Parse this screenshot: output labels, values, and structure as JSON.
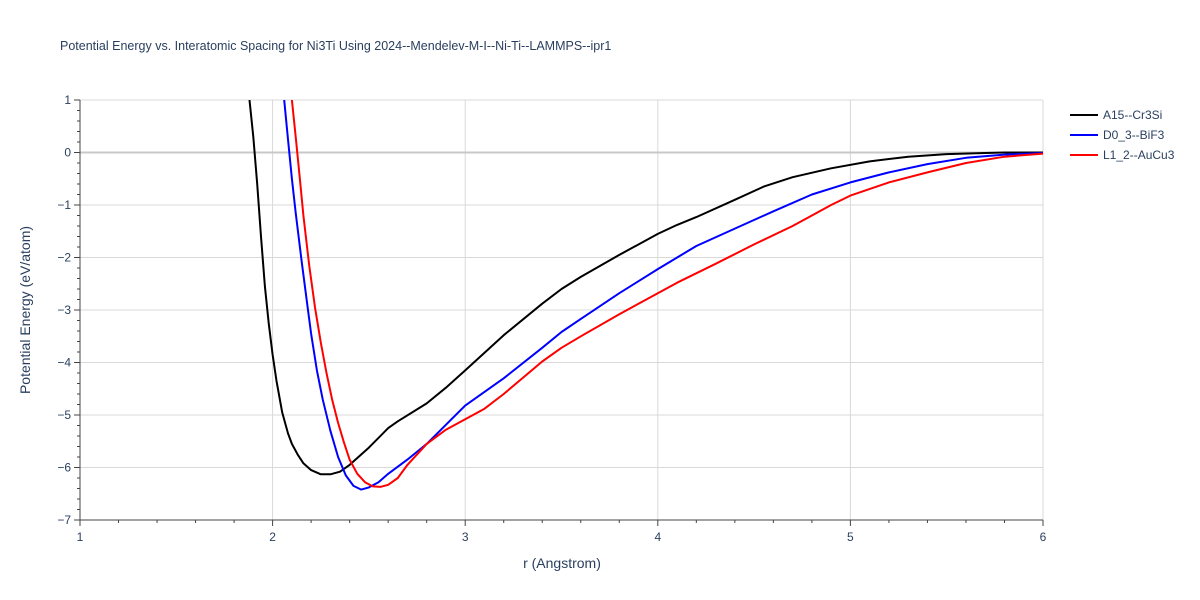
{
  "chart_data": {
    "type": "line",
    "title": "Potential Energy vs. Interatomic Spacing for Ni3Ti Using 2024--Mendelev-M-I--Ni-Ti--LAMMPS--ipr1",
    "xlabel": "r (Angstrom)",
    "ylabel": "Potential Energy (eV/atom)",
    "xlim": [
      1,
      6
    ],
    "ylim": [
      -7,
      1
    ],
    "xticks": [
      1,
      2,
      3,
      4,
      5,
      6
    ],
    "yticks": [
      1,
      0,
      -1,
      -2,
      -3,
      -4,
      -5,
      -6,
      -7
    ],
    "xtick_labels": [
      "1",
      "2",
      "3",
      "4",
      "5",
      "6"
    ],
    "ytick_labels": [
      "1",
      "0",
      "−1",
      "−2",
      "−3",
      "−4",
      "−5",
      "−6",
      "−7"
    ],
    "grid": true,
    "legend_position": "top-right",
    "series": [
      {
        "name": "A15--Cr3Si",
        "color": "#000000",
        "x": [
          1.88,
          1.9,
          1.92,
          1.94,
          1.96,
          1.98,
          2.0,
          2.02,
          2.05,
          2.08,
          2.1,
          2.13,
          2.16,
          2.2,
          2.25,
          2.3,
          2.35,
          2.4,
          2.5,
          2.6,
          2.65,
          2.8,
          2.9,
          3.0,
          3.2,
          3.4,
          3.5,
          3.6,
          3.8,
          4.0,
          4.1,
          4.2,
          4.4,
          4.55,
          4.7,
          4.9,
          5.1,
          5.3,
          5.5,
          5.7,
          5.8,
          6.0
        ],
        "y": [
          1.0,
          0.3,
          -0.6,
          -1.6,
          -2.55,
          -3.25,
          -3.85,
          -4.35,
          -4.95,
          -5.35,
          -5.55,
          -5.75,
          -5.92,
          -6.05,
          -6.13,
          -6.13,
          -6.08,
          -5.95,
          -5.62,
          -5.25,
          -5.12,
          -4.78,
          -4.48,
          -4.15,
          -3.48,
          -2.88,
          -2.6,
          -2.37,
          -1.95,
          -1.55,
          -1.38,
          -1.23,
          -0.9,
          -0.65,
          -0.47,
          -0.3,
          -0.17,
          -0.08,
          -0.03,
          -0.01,
          0.0,
          0.0
        ]
      },
      {
        "name": "D0_3--BiF3",
        "color": "#0000ff",
        "x": [
          2.06,
          2.08,
          2.1,
          2.12,
          2.15,
          2.18,
          2.2,
          2.23,
          2.26,
          2.3,
          2.34,
          2.38,
          2.42,
          2.46,
          2.5,
          2.55,
          2.6,
          2.7,
          2.8,
          3.0,
          3.2,
          3.4,
          3.5,
          3.6,
          3.8,
          4.0,
          4.2,
          4.4,
          4.6,
          4.8,
          5.0,
          5.2,
          5.4,
          5.6,
          5.8,
          6.0
        ],
        "y": [
          1.0,
          0.25,
          -0.5,
          -1.15,
          -2.05,
          -2.9,
          -3.45,
          -4.15,
          -4.7,
          -5.3,
          -5.8,
          -6.15,
          -6.35,
          -6.42,
          -6.38,
          -6.28,
          -6.12,
          -5.85,
          -5.55,
          -4.82,
          -4.3,
          -3.72,
          -3.42,
          -3.17,
          -2.68,
          -2.22,
          -1.78,
          -1.45,
          -1.12,
          -0.8,
          -0.57,
          -0.38,
          -0.22,
          -0.1,
          -0.04,
          -0.01
        ]
      },
      {
        "name": "L1_2--AuCu3",
        "color": "#ff0000",
        "x": [
          2.1,
          2.12,
          2.14,
          2.16,
          2.19,
          2.22,
          2.25,
          2.28,
          2.31,
          2.34,
          2.37,
          2.4,
          2.44,
          2.48,
          2.52,
          2.56,
          2.6,
          2.65,
          2.7,
          2.8,
          2.9,
          3.0,
          3.1,
          3.2,
          3.4,
          3.5,
          3.6,
          3.8,
          4.0,
          4.1,
          4.3,
          4.5,
          4.7,
          4.8,
          4.9,
          5.0,
          5.2,
          5.4,
          5.6,
          5.8,
          6.0
        ],
        "y": [
          1.0,
          0.3,
          -0.45,
          -1.2,
          -2.15,
          -2.95,
          -3.62,
          -4.2,
          -4.72,
          -5.15,
          -5.52,
          -5.85,
          -6.12,
          -6.28,
          -6.36,
          -6.37,
          -6.33,
          -6.2,
          -5.95,
          -5.55,
          -5.28,
          -5.08,
          -4.88,
          -4.6,
          -3.98,
          -3.72,
          -3.5,
          -3.08,
          -2.68,
          -2.48,
          -2.12,
          -1.75,
          -1.4,
          -1.2,
          -1.0,
          -0.82,
          -0.57,
          -0.38,
          -0.2,
          -0.08,
          -0.02
        ]
      }
    ]
  }
}
